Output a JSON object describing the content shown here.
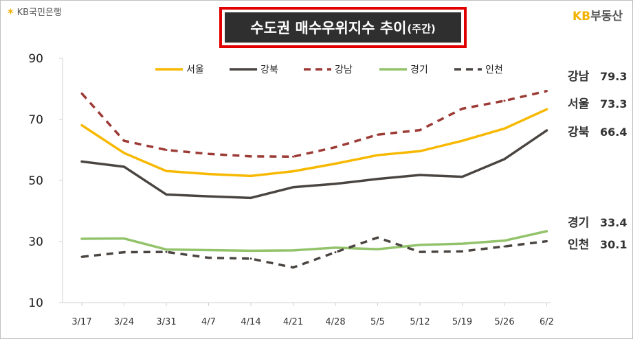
{
  "logos": {
    "bank": "KB국민은행",
    "estate_kb": "KB",
    "estate_rest": "부동산"
  },
  "title": {
    "main": "수도권 매수우위지수 추이",
    "sub": "(주간)"
  },
  "chart_data": {
    "type": "line",
    "categories": [
      "3/17",
      "3/24",
      "3/31",
      "4/7",
      "4/14",
      "4/21",
      "4/28",
      "5/5",
      "5/12",
      "5/19",
      "5/26",
      "6/2"
    ],
    "ylim": [
      10,
      90
    ],
    "yticks": [
      10,
      30,
      50,
      70,
      90
    ],
    "grid": false,
    "legend_position": "top",
    "series": [
      {
        "name": "서울",
        "color": "#f7b800",
        "dash": "solid",
        "values": [
          68.1,
          59.0,
          53.1,
          52.1,
          51.5,
          53.0,
          55.5,
          58.3,
          59.6,
          63.0,
          67.0,
          73.3
        ]
      },
      {
        "name": "강북",
        "color": "#4a4541",
        "dash": "solid",
        "values": [
          56.2,
          54.5,
          45.4,
          44.8,
          44.3,
          47.8,
          48.9,
          50.5,
          51.8,
          51.2,
          57.0,
          66.4
        ]
      },
      {
        "name": "강남",
        "color": "#9c3a35",
        "dash": "dashed",
        "values": [
          78.5,
          63.0,
          60.0,
          58.7,
          57.9,
          57.8,
          60.9,
          65.0,
          66.5,
          73.5,
          76.1,
          79.3
        ]
      },
      {
        "name": "경기",
        "color": "#92c36a",
        "dash": "solid",
        "values": [
          30.9,
          31.0,
          27.4,
          27.2,
          27.0,
          27.1,
          28.0,
          27.5,
          28.9,
          29.3,
          30.3,
          33.4
        ]
      },
      {
        "name": "인천",
        "color": "#4a4541",
        "dash": "dashed",
        "values": [
          25.0,
          26.5,
          26.6,
          24.7,
          24.4,
          21.5,
          26.5,
          31.3,
          26.6,
          26.8,
          28.4,
          30.1
        ]
      }
    ],
    "end_labels": [
      {
        "name": "강남",
        "value": "79.3"
      },
      {
        "name": "서울",
        "value": "73.3"
      },
      {
        "name": "강북",
        "value": "66.4"
      },
      {
        "name": "경기",
        "value": "33.4"
      },
      {
        "name": "인천",
        "value": "30.1"
      }
    ]
  }
}
